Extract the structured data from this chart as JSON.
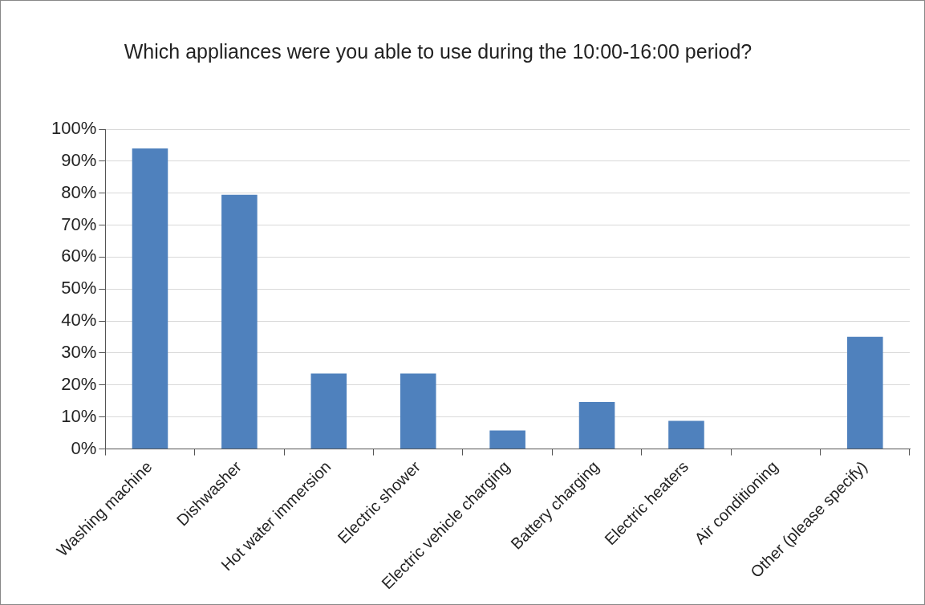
{
  "chart_data": {
    "type": "bar",
    "title": "Which appliances were you able to use during the 10:00-16:00 period?",
    "categories": [
      "Washing machine",
      "Dishwasher",
      "Hot water immersion",
      "Electric shower",
      "Electric vehicle charging",
      "Battery charging",
      "Electric heaters",
      "Air conditioning",
      "Other (please specify)"
    ],
    "values": [
      94.0,
      79.5,
      23.6,
      23.6,
      5.8,
      14.7,
      8.8,
      0,
      35.1
    ],
    "color": "#4f81bd",
    "ylim": [
      0,
      100
    ],
    "yticks": [
      {
        "value": 0,
        "label": "0%"
      },
      {
        "value": 10,
        "label": "10%"
      },
      {
        "value": 20,
        "label": "20%"
      },
      {
        "value": 30,
        "label": "30%"
      },
      {
        "value": 40,
        "label": "40%"
      },
      {
        "value": 50,
        "label": "50%"
      },
      {
        "value": 60,
        "label": "60%"
      },
      {
        "value": 70,
        "label": "70%"
      },
      {
        "value": 80,
        "label": "80%"
      },
      {
        "value": 90,
        "label": "90%"
      },
      {
        "value": 100,
        "label": "100%"
      }
    ],
    "grid": "y",
    "legend": false
  }
}
